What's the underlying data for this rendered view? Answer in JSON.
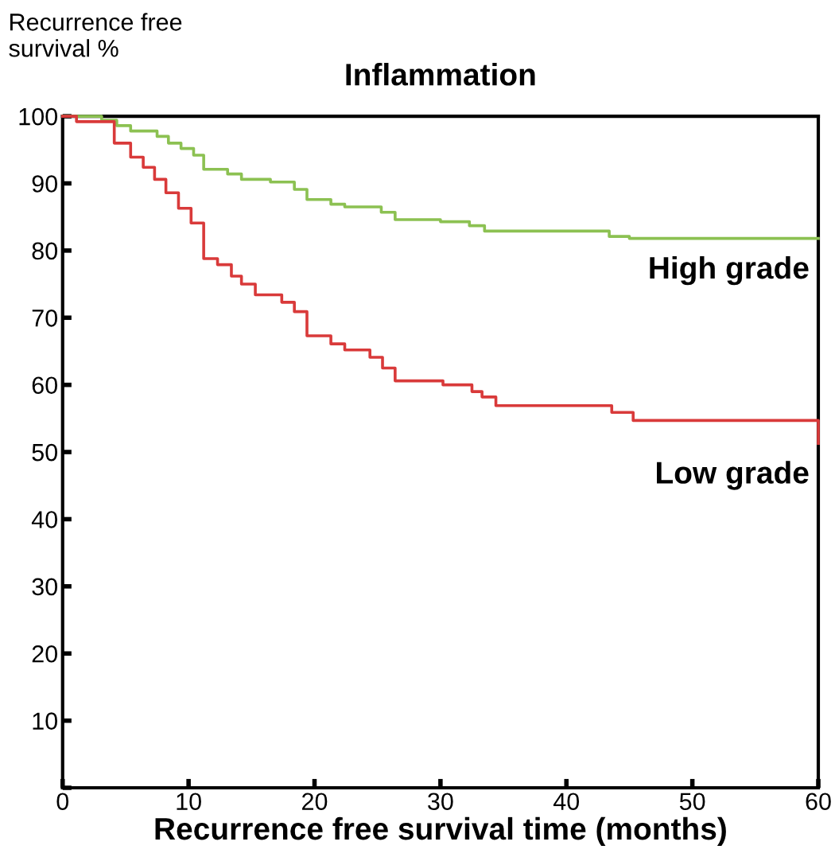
{
  "chart_data": {
    "type": "step",
    "title": "Inflammation",
    "xlabel": "Recurrence free survival time (months)",
    "ylabel": "Recurrence free\nsurvival %",
    "xlim": [
      0,
      60
    ],
    "ylim": [
      0,
      100
    ],
    "xticks": [
      0,
      10,
      20,
      30,
      40,
      50,
      60
    ],
    "yticks": [
      {
        "value": 0,
        "label": null
      },
      10,
      20,
      30,
      40,
      50,
      60,
      70,
      80,
      90,
      100
    ],
    "grid": false,
    "legend": false,
    "line_style": "solid",
    "marker": "none",
    "series": [
      {
        "name": "High grade",
        "color": "#8cc152",
        "x": [
          0,
          3.1,
          4.3,
          5.4,
          7.5,
          8.4,
          9.4,
          10.4,
          11.2,
          13.1,
          14.2,
          16.5,
          18.4,
          19.4,
          21.3,
          22.4,
          25.3,
          26.4,
          30,
          32.3,
          33.5,
          43.4,
          45,
          60
        ],
        "values": [
          100,
          99.4,
          98.6,
          97.8,
          97,
          96,
          95.2,
          94.2,
          92.1,
          91.4,
          90.6,
          90.2,
          89.1,
          87.6,
          86.9,
          86.5,
          85.7,
          84.6,
          84.3,
          83.7,
          82.9,
          82.1,
          81.8,
          81.8
        ]
      },
      {
        "name": "Low grade",
        "color": "#d93a3a",
        "x": [
          0,
          1.1,
          4.1,
          5.4,
          6.4,
          7.3,
          8.2,
          9.2,
          10.2,
          11.2,
          12.3,
          13.4,
          14.2,
          15.3,
          17.4,
          18.4,
          19.4,
          21.3,
          22.4,
          24.4,
          25.4,
          26.4,
          30.2,
          32.5,
          33.3,
          34.4,
          43.6,
          45.3,
          60
        ],
        "values": [
          100,
          99.2,
          96,
          93.9,
          92.4,
          90.6,
          88.6,
          86.3,
          84.1,
          78.8,
          77.9,
          76.2,
          75,
          73.4,
          72.3,
          70.9,
          67.3,
          66.1,
          65.2,
          64.1,
          62.5,
          60.6,
          60,
          59,
          58.2,
          56.9,
          55.9,
          54.7,
          51.3
        ]
      }
    ]
  }
}
